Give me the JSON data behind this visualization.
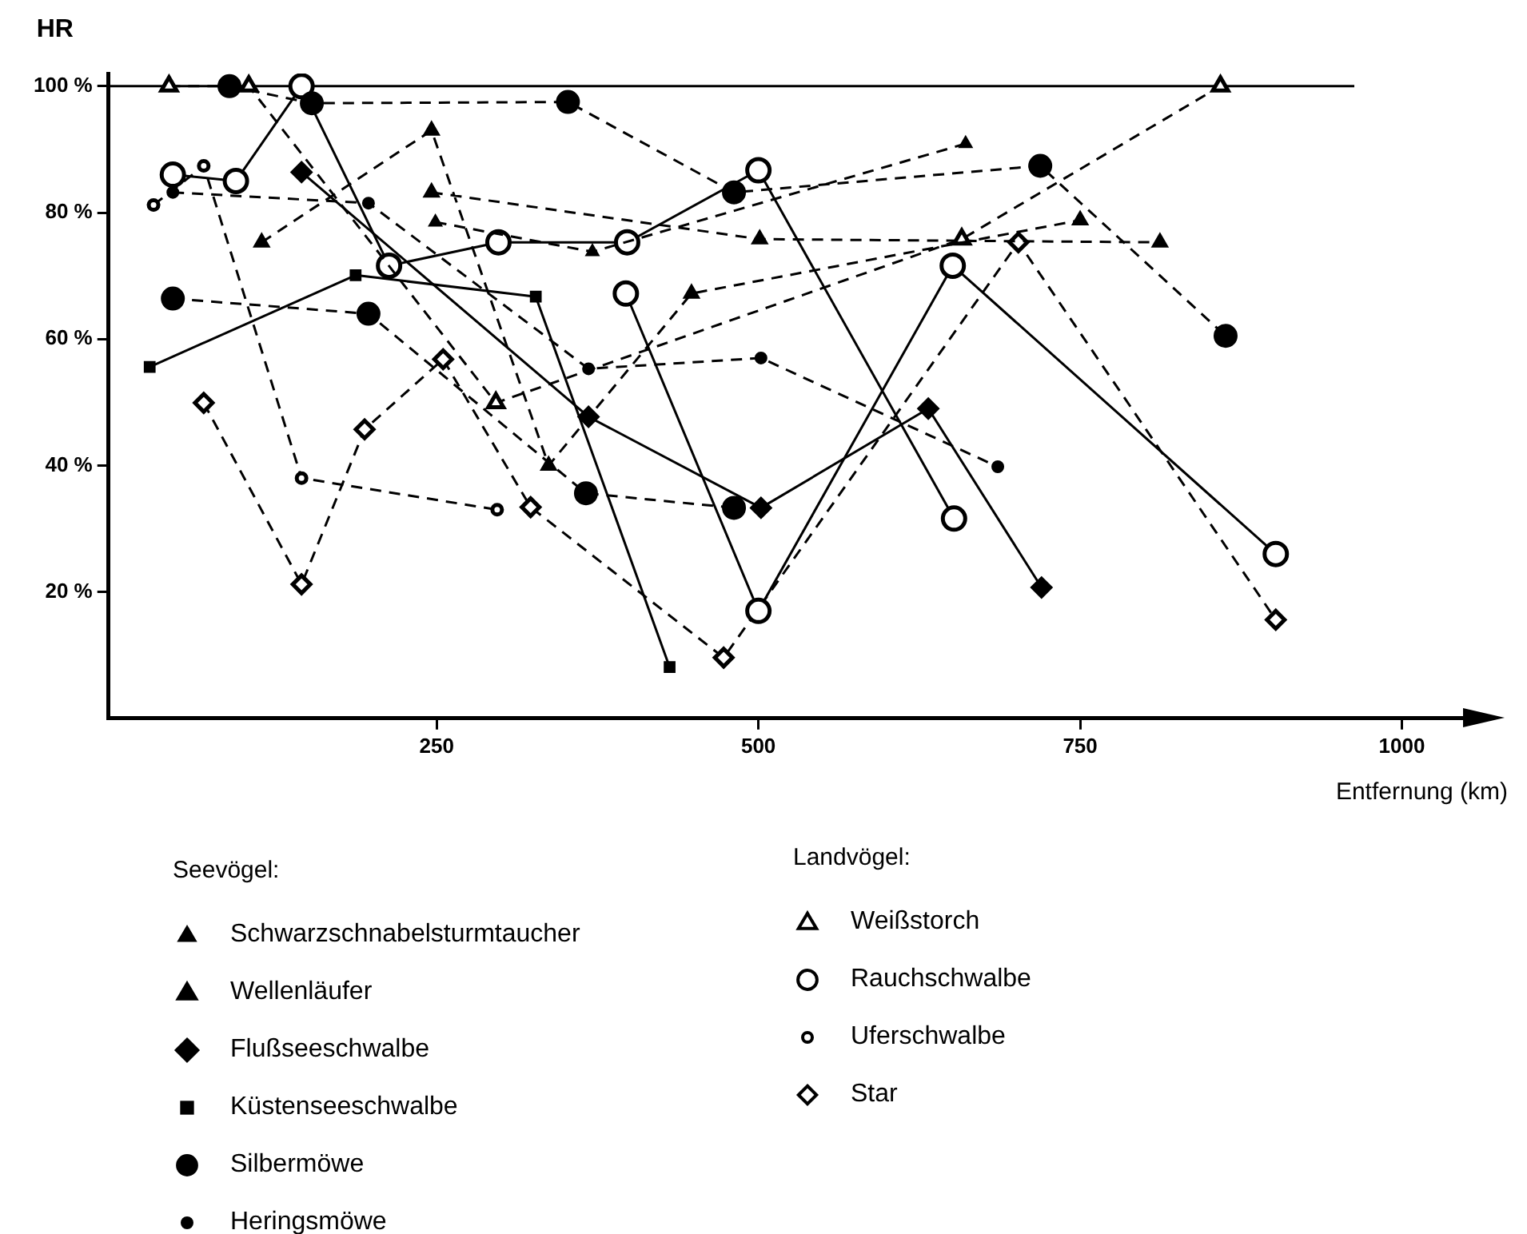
{
  "chart_data": {
    "type": "line",
    "ylabel": "HR",
    "xlabel": "Entfernung (km)",
    "xlim": [
      -5,
      1050
    ],
    "xticks": [
      250,
      500,
      750,
      1000
    ],
    "ylim": [
      0,
      102
    ],
    "yticks": [
      {
        "value": 20,
        "label": "20 %"
      },
      {
        "value": 40,
        "label": "40 %"
      },
      {
        "value": 60,
        "label": "60 %"
      },
      {
        "value": 80,
        "label": "80 %"
      },
      {
        "value": 100,
        "label": "100 %"
      }
    ],
    "legend": "bottom",
    "annotations": [
      "Seevögel:",
      "Landvögel:"
    ],
    "ref_lines": [
      {
        "axis": "y",
        "value": 100,
        "color": "#000000",
        "line_style": "solid"
      }
    ],
    "series": [
      {
        "name": "Schwarzschnabelsturmtaucher",
        "color": "#000000",
        "marker": "triangle",
        "line_style": "dashed",
        "x": [
          249,
          371,
          661
        ],
        "values": [
          78.5,
          73.8,
          90.9
        ]
      },
      {
        "name": "Wellenläufer",
        "color": "#000000",
        "marker": "triangle",
        "line_style": "dashed",
        "x": [
          114,
          246,
          337,
          448,
          750,
          null,
          246,
          501,
          812
        ],
        "values": [
          75.3,
          93,
          40,
          67.2,
          78.8,
          null,
          83.2,
          75.8,
          75.3
        ]
      },
      {
        "name": "Flußseeschwalbe",
        "color": "#000000",
        "marker": "diamond",
        "line_style": "solid",
        "x": [
          145,
          368,
          502,
          632,
          720
        ],
        "values": [
          86.4,
          47.7,
          33.3,
          49,
          20.7
        ]
      },
      {
        "name": "Küstenseeschwalbe",
        "color": "#000000",
        "marker": "square",
        "line_style": "solid",
        "x": [
          27,
          187,
          327,
          431
        ],
        "values": [
          55.6,
          70.1,
          66.7,
          8.1
        ]
      },
      {
        "name": "Silbermöwe",
        "color": "#000000",
        "marker": "circle",
        "line_style": "dashed",
        "x": [
          89,
          153,
          352,
          481,
          719,
          863,
          null,
          45,
          197,
          366,
          481
        ],
        "values": [
          100,
          97.3,
          97.5,
          83.2,
          87.4,
          60.5,
          null,
          66.4,
          64,
          35.6,
          33.3
        ]
      },
      {
        "name": "Heringsmöwe",
        "color": "#000000",
        "marker": "circle",
        "line_style": "dashed",
        "x": [
          45,
          197,
          368,
          502,
          686
        ],
        "values": [
          83.2,
          81.5,
          55.3,
          57,
          39.8
        ]
      },
      {
        "name": "Weißstorch",
        "color": "#000000",
        "marker": "triangle",
        "line_style": "dashed",
        "x": [
          42,
          104,
          296,
          658,
          859
        ],
        "values": [
          100,
          100,
          49.9,
          75.8,
          100
        ]
      },
      {
        "name": "Rauchschwalbe",
        "color": "#000000",
        "marker": "circle",
        "line_style": "solid",
        "x": [
          45,
          94,
          145,
          213,
          298,
          398,
          500,
          652,
          null,
          397,
          500,
          651,
          902
        ],
        "values": [
          86,
          85,
          100,
          71.6,
          75.3,
          75.3,
          86.7,
          31.6,
          null,
          67.2,
          17,
          71.6,
          26
        ]
      },
      {
        "name": "Uferschwalbe",
        "color": "#000000",
        "marker": "circle",
        "line_style": "dashed",
        "x": [
          30,
          69,
          145,
          297
        ],
        "values": [
          81.2,
          87.4,
          38,
          33
        ]
      },
      {
        "name": "Star",
        "color": "#000000",
        "marker": "diamond",
        "line_style": "dashed",
        "x": [
          69,
          145,
          194,
          255,
          323,
          473,
          702,
          902
        ],
        "values": [
          49.9,
          21.2,
          45.7,
          56.8,
          33.4,
          9.6,
          75.3,
          15.6
        ]
      }
    ]
  }
}
